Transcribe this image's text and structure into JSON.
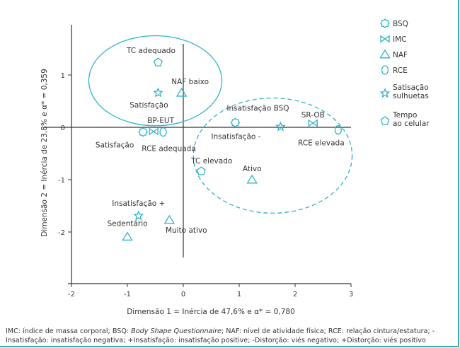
{
  "chart_data": {
    "type": "scatter",
    "xlabel": "Dimensão 1 = Inércia de 47,6% e α* = 0,780",
    "ylabel": "Dimensão 2 = Inércia de 23,8% e α* = 0,359",
    "xlim": [
      -2,
      3
    ],
    "ylim": [
      -2.95,
      2
    ],
    "xticks": [
      "-2",
      "-1",
      "0",
      "1",
      "2",
      "3"
    ],
    "yticks": [
      "1",
      "0",
      "-1",
      "-2"
    ],
    "grid": false,
    "legend_position": "right",
    "series": [
      {
        "name": "BSQ",
        "marker": "hexagon",
        "points": [
          {
            "label": "Satisfação",
            "x": -0.72,
            "y": -0.09
          },
          {
            "label": "Insatisfação BSQ",
            "x": 0.93,
            "y": 0.09
          }
        ]
      },
      {
        "name": "IMC",
        "marker": "bowtie",
        "points": [
          {
            "label": "BP-EUT",
            "x": -0.53,
            "y": -0.08
          },
          {
            "label": "SR-OB",
            "x": 2.32,
            "y": 0.08
          }
        ]
      },
      {
        "name": "NAF",
        "marker": "triangle",
        "points": [
          {
            "label": "NAF baixo",
            "x": -0.03,
            "y": 0.66
          },
          {
            "label": "Ativo",
            "x": 1.23,
            "y": -1.0
          },
          {
            "label": "Sedentário",
            "x": -1.0,
            "y": -2.09
          },
          {
            "label": "Muito ativo",
            "x": -0.25,
            "y": -1.77
          }
        ]
      },
      {
        "name": "RCE",
        "marker": "ellipse",
        "points": [
          {
            "label": "RCE adequada",
            "x": -0.36,
            "y": -0.09
          },
          {
            "label": "RCE elevada",
            "x": 2.77,
            "y": -0.05
          }
        ]
      },
      {
        "name": "Satisação sulhuetas",
        "marker": "star",
        "points": [
          {
            "label": "Satisfação",
            "x": -0.45,
            "y": 0.66
          },
          {
            "label": "Insatisfação -",
            "x": 1.74,
            "y": 0.01
          },
          {
            "label": "Insatisfação +",
            "x": -0.8,
            "y": -1.69
          }
        ]
      },
      {
        "name": "Tempo ao celular",
        "marker": "pentagon",
        "points": [
          {
            "label": "TC adequado",
            "x": -0.45,
            "y": 1.24
          },
          {
            "label": "TC elevado",
            "x": 0.32,
            "y": -0.84
          }
        ]
      }
    ],
    "groupings": [
      {
        "style": "solid",
        "center": [
          -0.5,
          0.89
        ],
        "radii": [
          1.19,
          0.86
        ]
      },
      {
        "style": "dashed",
        "center": [
          1.6,
          -0.54
        ],
        "radii": [
          1.42,
          1.1
        ]
      }
    ]
  },
  "legend": {
    "items": [
      {
        "line1": "BSQ",
        "line2": ""
      },
      {
        "line1": "IMC",
        "line2": ""
      },
      {
        "line1": "NAF",
        "line2": ""
      },
      {
        "line1": "RCE",
        "line2": ""
      },
      {
        "line1": "Satisação",
        "line2": "sulhuetas"
      },
      {
        "line1": "Tempo",
        "line2": "ao celular"
      }
    ]
  },
  "footnote": {
    "part1": "IMC: índice de massa corporal; BSQ: ",
    "italic": "Body Shape Questionnaire",
    "part2": "; NAF: nível de atividade física; RCE: relação cintura/estatura; -Insatisfação: insatisfação negativa; +Insatisfação: insatisfação positive; -Distorção: viés negativo; +Distorção: viés positivo"
  },
  "colors": {
    "marker": "#2fb3c6",
    "axis": "#333333",
    "border": "#3aa7b5"
  }
}
